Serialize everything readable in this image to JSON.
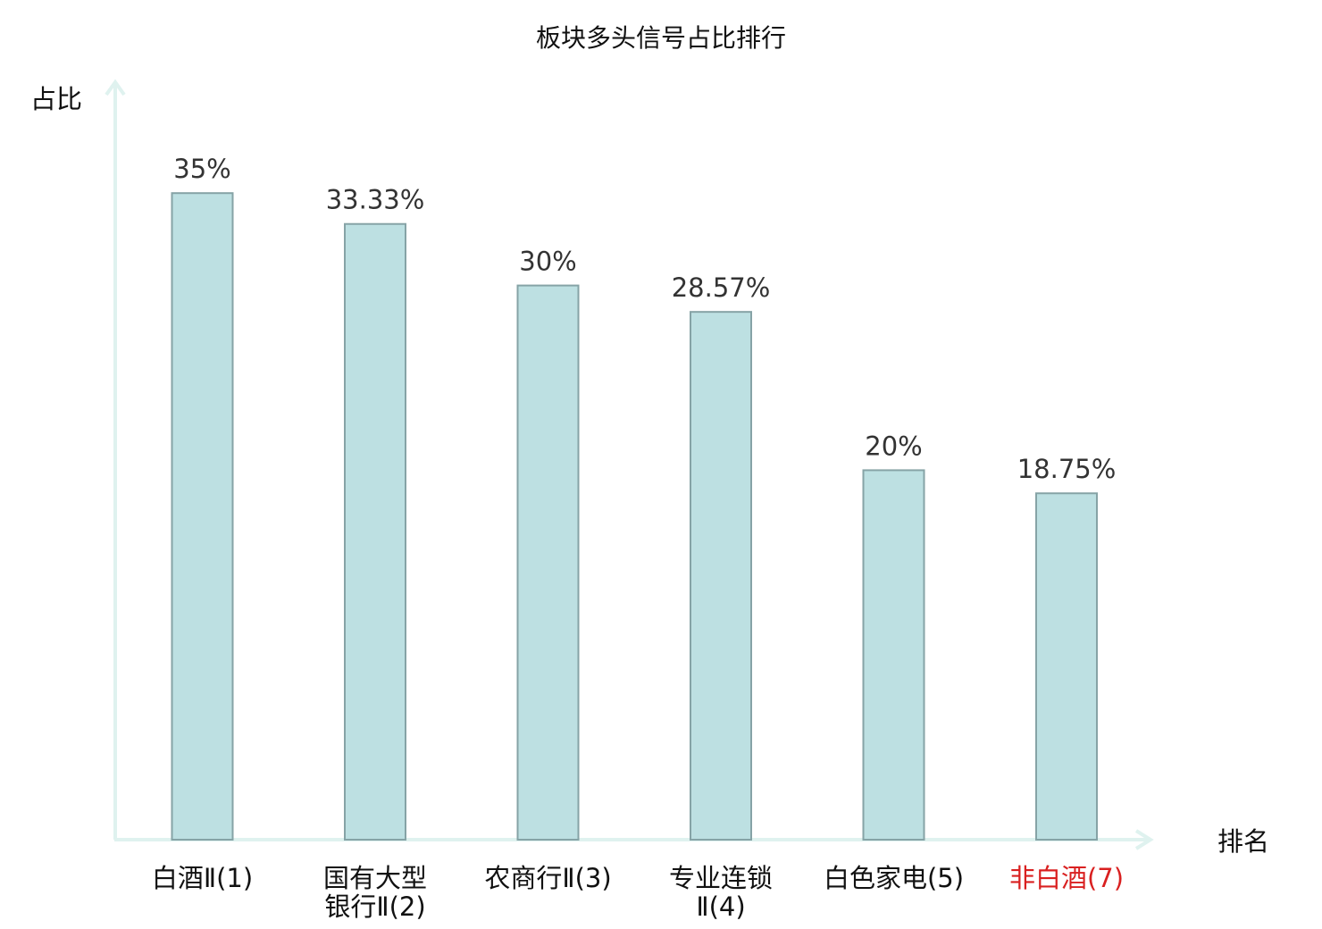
{
  "chart_data": {
    "type": "bar",
    "title": "板块多头信号占比排行",
    "ylabel": "占比",
    "xlabel": "排名",
    "ylim": [
      0,
      0.3675
    ],
    "grid": false,
    "categories": [
      {
        "lines": [
          "白酒Ⅱ(1)"
        ],
        "name": "白酒Ⅱ",
        "rank": "1",
        "highlight": false
      },
      {
        "lines": [
          "国有大型",
          "银行Ⅱ(2)"
        ],
        "name": "国有大型银行Ⅱ",
        "rank": "2",
        "highlight": false
      },
      {
        "lines": [
          "农商行Ⅱ(3)"
        ],
        "name": "农商行Ⅱ",
        "rank": "3",
        "highlight": false
      },
      {
        "lines": [
          "专业连锁",
          "Ⅱ(4)"
        ],
        "name": "专业连锁Ⅱ",
        "rank": "4",
        "highlight": false
      },
      {
        "lines": [
          "白色家电(5)"
        ],
        "name": "白色家电",
        "rank": "5",
        "highlight": false
      },
      {
        "lines": [
          "非白酒(7)"
        ],
        "name": "非白酒",
        "rank": "7",
        "highlight": true
      }
    ],
    "values": [
      0.35,
      0.3333,
      0.3,
      0.2857,
      0.2,
      0.1875
    ],
    "value_labels": [
      "35%",
      "33.33%",
      "30%",
      "28.57%",
      "20%",
      "18.75%"
    ],
    "colors": {
      "bar_fill": "#bde0e2",
      "bar_stroke": "#86a3a6",
      "axis": "#dff2ef",
      "highlight_text": "#d92020"
    }
  }
}
